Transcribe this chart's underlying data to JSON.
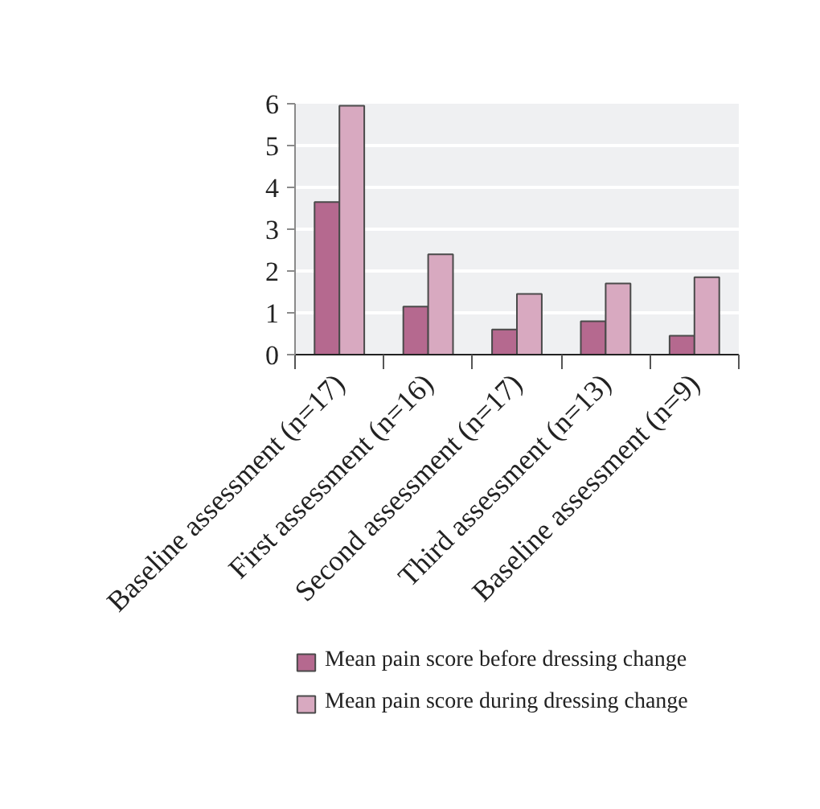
{
  "chart_data": {
    "type": "bar",
    "categories": [
      "Baseline assessment (n=17)",
      "First assessment (n=16)",
      "Second assessment (n=17)",
      "Third assessment (n=13)",
      "Baseline assessment (n=9)"
    ],
    "series": [
      {
        "name": "Mean pain score before dressing change",
        "color": "#b5698f",
        "values": [
          3.65,
          1.15,
          0.6,
          0.8,
          0.45
        ]
      },
      {
        "name": "Mean pain score during dressing change",
        "color": "#d8a9c0",
        "values": [
          5.95,
          2.4,
          1.45,
          1.7,
          1.85
        ]
      }
    ],
    "ylim": [
      0,
      6
    ],
    "yticks": [
      0,
      1,
      2,
      3,
      4,
      5,
      6
    ],
    "grid": "y",
    "legend": "bottom"
  }
}
